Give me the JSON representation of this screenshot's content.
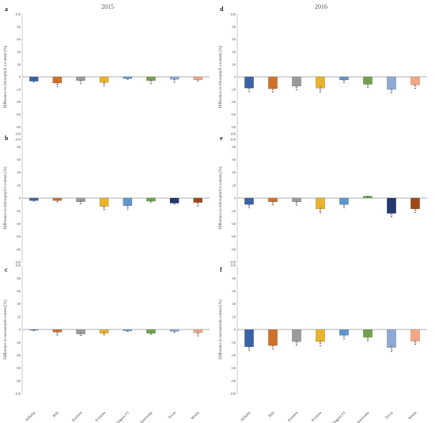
{
  "years": [
    "2015",
    "2016"
  ],
  "colors": [
    "#3a62a8",
    "#d0712a",
    "#9b9b9b",
    "#e9b32a",
    "#5e97cf",
    "#6fa24a",
    "#24386e",
    "#9e4a18"
  ],
  "colors_2016_cd": [
    "#3a62a8",
    "#d0712a",
    "#9b9b9b",
    "#e9b32a",
    "#5e97cf",
    "#6fa24a",
    "#8fa8d6",
    "#f2a882"
  ],
  "colors_2015_a": [
    "#3a62a8",
    "#d0712a",
    "#9b9b9b",
    "#e9b32a",
    "#5e97cf",
    "#6fa24a",
    "#8fa8d6",
    "#f2a882"
  ],
  "chart_data": [
    {
      "type": "bar",
      "panel": "a",
      "year": "2015",
      "ylabel": "Difference in chlorophyll a content [%]",
      "ylim": [
        -100,
        100
      ],
      "yticks": [
        100,
        80,
        60,
        40,
        20,
        0,
        -20,
        -40,
        -60,
        -80,
        -100
      ],
      "categories": [
        "Alibaba",
        "Bila",
        "Karmen",
        "Kristine",
        "Niagara F1",
        "Polanowska",
        "Tecza",
        "Wenta"
      ],
      "values": [
        -7,
        -10,
        -6,
        -9,
        -3,
        -6,
        -4,
        -5
      ],
      "errors": [
        1.5,
        2,
        1.5,
        2,
        1,
        1.5,
        1,
        1.5
      ],
      "significant": [
        false,
        true,
        true,
        true,
        false,
        true,
        true,
        false
      ],
      "palette": "colors_2015_a"
    },
    {
      "type": "bar",
      "panel": "d",
      "year": "2016",
      "ylabel": "Difference in chlorophyll a content [%]",
      "ylim": [
        -100,
        100
      ],
      "yticks": [
        100,
        80,
        60,
        40,
        20,
        0,
        -20,
        -40,
        -60,
        -80,
        -100
      ],
      "categories": [
        "Alibaba",
        "Bila",
        "Karmen",
        "Kristine",
        "Niagara F1",
        "Polanowska",
        "Tecza",
        "Wenta"
      ],
      "values": [
        -18,
        -19,
        -15,
        -18,
        -5,
        -12,
        -20,
        -13
      ],
      "errors": [
        2,
        2,
        2,
        3,
        1,
        2,
        2,
        2
      ],
      "significant": [
        true,
        true,
        true,
        true,
        true,
        true,
        true,
        true
      ],
      "palette": "colors_2016_cd"
    },
    {
      "type": "bar",
      "panel": "b",
      "year": "2015",
      "ylabel": "Difference in chlorophyll b content [%]",
      "ylim": [
        -100,
        100
      ],
      "yticks": [
        100,
        80,
        60,
        40,
        20,
        0,
        -20,
        -40,
        -60,
        -80,
        -100
      ],
      "categories": [
        "Alibaba",
        "Bila",
        "Karmen",
        "Kristine",
        "Niagara F1",
        "Polanowska",
        "Tecza",
        "Wenta"
      ],
      "values": [
        -4,
        -4,
        -6,
        -13,
        -12,
        -5,
        -8,
        -7
      ],
      "errors": [
        1,
        2,
        3,
        2,
        2,
        1.5,
        1.5,
        2
      ],
      "significant": [
        false,
        false,
        false,
        true,
        true,
        false,
        false,
        true
      ],
      "palette": "colors"
    },
    {
      "type": "bar",
      "panel": "e",
      "year": "2016",
      "ylabel": "Difference in chlorophyll b content [%]",
      "ylim": [
        -100,
        100
      ],
      "yticks": [
        100,
        80,
        60,
        40,
        20,
        0,
        -20,
        -40,
        -60,
        -80,
        -100
      ],
      "categories": [
        "Alibaba",
        "Bila",
        "Karmen",
        "Kristine",
        "Niagara F1",
        "Polanowska",
        "Tecza",
        "Wenta"
      ],
      "values": [
        -10,
        -6,
        -6,
        -17,
        -10,
        3,
        -24,
        -17
      ],
      "errors": [
        2,
        1.5,
        2,
        3,
        2,
        1,
        2,
        2
      ],
      "significant": [
        true,
        true,
        true,
        true,
        true,
        false,
        true,
        true
      ],
      "palette": "colors"
    },
    {
      "type": "bar",
      "panel": "c",
      "year": "2015",
      "ylabel": "Difference in carotenoids content [%]",
      "ylim": [
        -100,
        100
      ],
      "yticks": [
        100,
        80,
        60,
        40,
        20,
        0,
        -20,
        -40,
        -60,
        -80,
        -100
      ],
      "categories": [
        "Alibaba",
        "Bila",
        "Karmen",
        "Kristine",
        "Niagara F1",
        "Polanowska",
        "Tecza",
        "Wenta"
      ],
      "values": [
        -1,
        -4,
        -7,
        -6,
        -2,
        -6,
        -3,
        -5
      ],
      "errors": [
        1,
        1.5,
        2.5,
        2.5,
        1,
        2,
        1,
        1.5
      ],
      "significant": [
        false,
        true,
        false,
        false,
        false,
        false,
        false,
        true
      ],
      "palette": "colors_2015_a"
    },
    {
      "type": "bar",
      "panel": "f",
      "year": "2016",
      "ylabel": "Difference in carotenoids content [%]",
      "ylim": [
        -100,
        100
      ],
      "yticks": [
        100,
        80,
        60,
        40,
        20,
        0,
        -20,
        -40,
        -60,
        -80,
        -100
      ],
      "categories": [
        "Alibaba",
        "Bila",
        "Karmen",
        "Kristine",
        "Niagara F1",
        "Polanowska",
        "Tecza",
        "Wenta"
      ],
      "values": [
        -27,
        -25,
        -19,
        -19,
        -9,
        -12,
        -28,
        -18
      ],
      "errors": [
        2,
        2,
        2,
        3,
        2,
        2,
        3,
        2
      ],
      "significant": [
        true,
        true,
        true,
        true,
        true,
        true,
        true,
        true
      ],
      "palette": "colors_2016_cd"
    }
  ]
}
